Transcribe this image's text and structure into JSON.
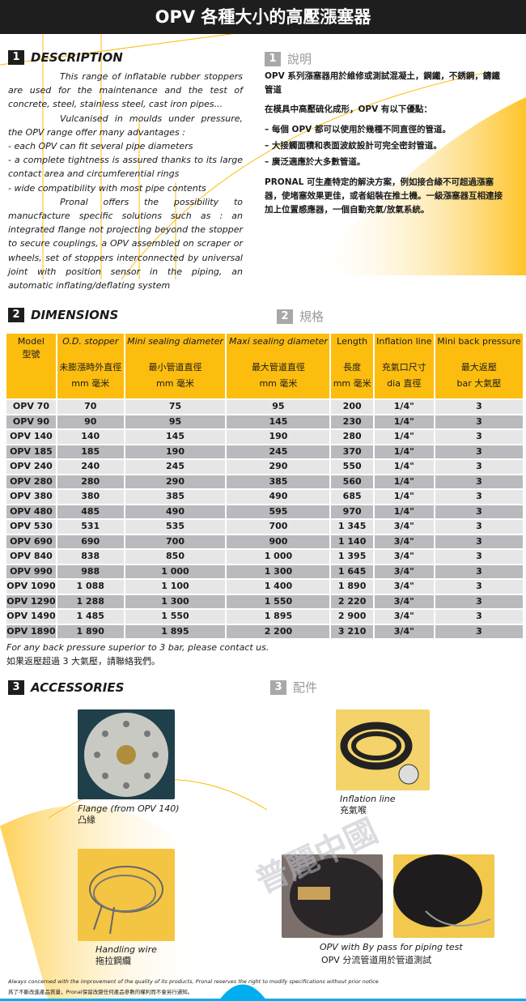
{
  "title": "OPV 各種大小的高壓漲塞器",
  "colors": {
    "accent": "#fdbd0f",
    "header_bar": "#1e1e1e",
    "footer_blue": "#00aeef"
  },
  "description": {
    "num": "1",
    "title_en": "DESCRIPTION",
    "title_zh": "說明",
    "en": [
      "This range of inflatable rubber stoppers are used for the maintenance and the test of concrete, steel, stainless steel, cast iron pipes...",
      "Vulcanised in moulds under pressure, the OPV range offer many advantages :",
      "- each OPV can fit several pipe diameters",
      "- a complete tightness is assured thanks to its large contact area and circumferential rings",
      "- wide compatibility with most pipe contents",
      "Pronal offers the possibility to manucfacture specific solutions  such as :  an integrated flange not projecting beyond the stopper to secure couplings, a OPV assembled on scraper or wheels, set of stoppers interconnected by universal joint with position sensor in the piping, an automatic inflating/deflating system"
    ],
    "zh": [
      "OPV 系列漲塞器用於維修或測試混凝土，鋼鐵，不銹鋼，鑄鐵管道",
      "在模具中高壓硫化成形，OPV 有以下優點：",
      "– 每個 OPV 都可以使用於幾種不同直徑的管道。",
      "– 大接觸面積和表面波紋設計可完全密封管道。",
      "– 廣泛適應於大多數管道。",
      "PRONAL 可生產特定的解決方案，例如接合緣不可超過漲塞器，使堵塞效果更佳，或者組裝在推土機。一級漲塞器互相連接加上位置感應器，一個自動充氣/放氣系統。"
    ]
  },
  "dimensions": {
    "num": "2",
    "title_en": "DIMENSIONS",
    "title_zh": "規格",
    "headers": [
      {
        "en": "Model",
        "zh": "型號",
        "unit": ""
      },
      {
        "en": "O.D. stopper",
        "zh": "未膨漲時外直徑",
        "unit": "mm  毫米"
      },
      {
        "en": "Mini sealing diameter",
        "zh": "最小管道直徑",
        "unit": "mm  毫米"
      },
      {
        "en": "Maxi sealing diameter",
        "zh": "最大管道直徑",
        "unit": "mm  毫米"
      },
      {
        "en": "Length",
        "zh": "長度",
        "unit": "mm  毫米"
      },
      {
        "en": "Inflation line",
        "zh": "充氣口尺寸",
        "unit": "dia  直徑"
      },
      {
        "en": "Mini back pressure",
        "zh": "最大返壓",
        "unit": "bar  大氣壓"
      }
    ],
    "rows": [
      [
        "OPV 70",
        "70",
        "75",
        "95",
        "200",
        "1/4\"",
        "3"
      ],
      [
        "OPV 90",
        "90",
        "95",
        "145",
        "230",
        "1/4\"",
        "3"
      ],
      [
        "OPV 140",
        "140",
        "145",
        "190",
        "280",
        "1/4\"",
        "3"
      ],
      [
        "OPV 185",
        "185",
        "190",
        "245",
        "370",
        "1/4\"",
        "3"
      ],
      [
        "OPV 240",
        "240",
        "245",
        "290",
        "550",
        "1/4\"",
        "3"
      ],
      [
        "OPV 280",
        "280",
        "290",
        "385",
        "560",
        "1/4\"",
        "3"
      ],
      [
        "OPV 380",
        "380",
        "385",
        "490",
        "685",
        "1/4\"",
        "3"
      ],
      [
        "OPV 480",
        "485",
        "490",
        "595",
        "970",
        "1/4\"",
        "3"
      ],
      [
        "OPV 530",
        "531",
        "535",
        "700",
        "1 345",
        "3/4\"",
        "3"
      ],
      [
        "OPV 690",
        "690",
        "700",
        "900",
        "1 140",
        "3/4\"",
        "3"
      ],
      [
        "OPV 840",
        "838",
        "850",
        "1 000",
        "1 395",
        "3/4\"",
        "3"
      ],
      [
        "OPV 990",
        "988",
        "1 000",
        "1 300",
        "1 645",
        "3/4\"",
        "3"
      ],
      [
        "OPV 1090",
        "1 088",
        "1 100",
        "1 400",
        "1 890",
        "3/4\"",
        "3"
      ],
      [
        "OPV 1290",
        "1 288",
        "1 300",
        "1 550",
        "2 220",
        "3/4\"",
        "3"
      ],
      [
        "OPV 1490",
        "1 485",
        "1 550",
        "1 895",
        "2 900",
        "3/4\"",
        "3"
      ],
      [
        "OPV 1890",
        "1 890",
        "1 895",
        "2 200",
        "3 210",
        "3/4\"",
        "3"
      ]
    ],
    "note_en": "For any back pressure superior to 3 bar, please contact us.",
    "note_zh": "如果返壓超過 3 大氣壓，請聯絡我們。"
  },
  "accessories": {
    "num": "3",
    "title_en": "ACCESSORIES",
    "title_zh": "配件",
    "items": [
      {
        "en": "Flange (from OPV 140)",
        "zh": "凸緣"
      },
      {
        "en": "Inflation line",
        "zh": "充氣喉"
      },
      {
        "en": "Handling wire",
        "zh": "拖拉鋼纜"
      },
      {
        "en": "OPV with By pass for piping test",
        "zh": "OPV 分流管道用於管道測試"
      }
    ],
    "watermark": "普麗中國"
  },
  "footer": {
    "en": "Always concerned with the improvement of the quality of its products, Pronal reserves the right to modify specifications without prior notice",
    "zh": "爲了不斷改進產品質量，Pronal保留改變任何產品參數的權利而不會另行通知。"
  }
}
